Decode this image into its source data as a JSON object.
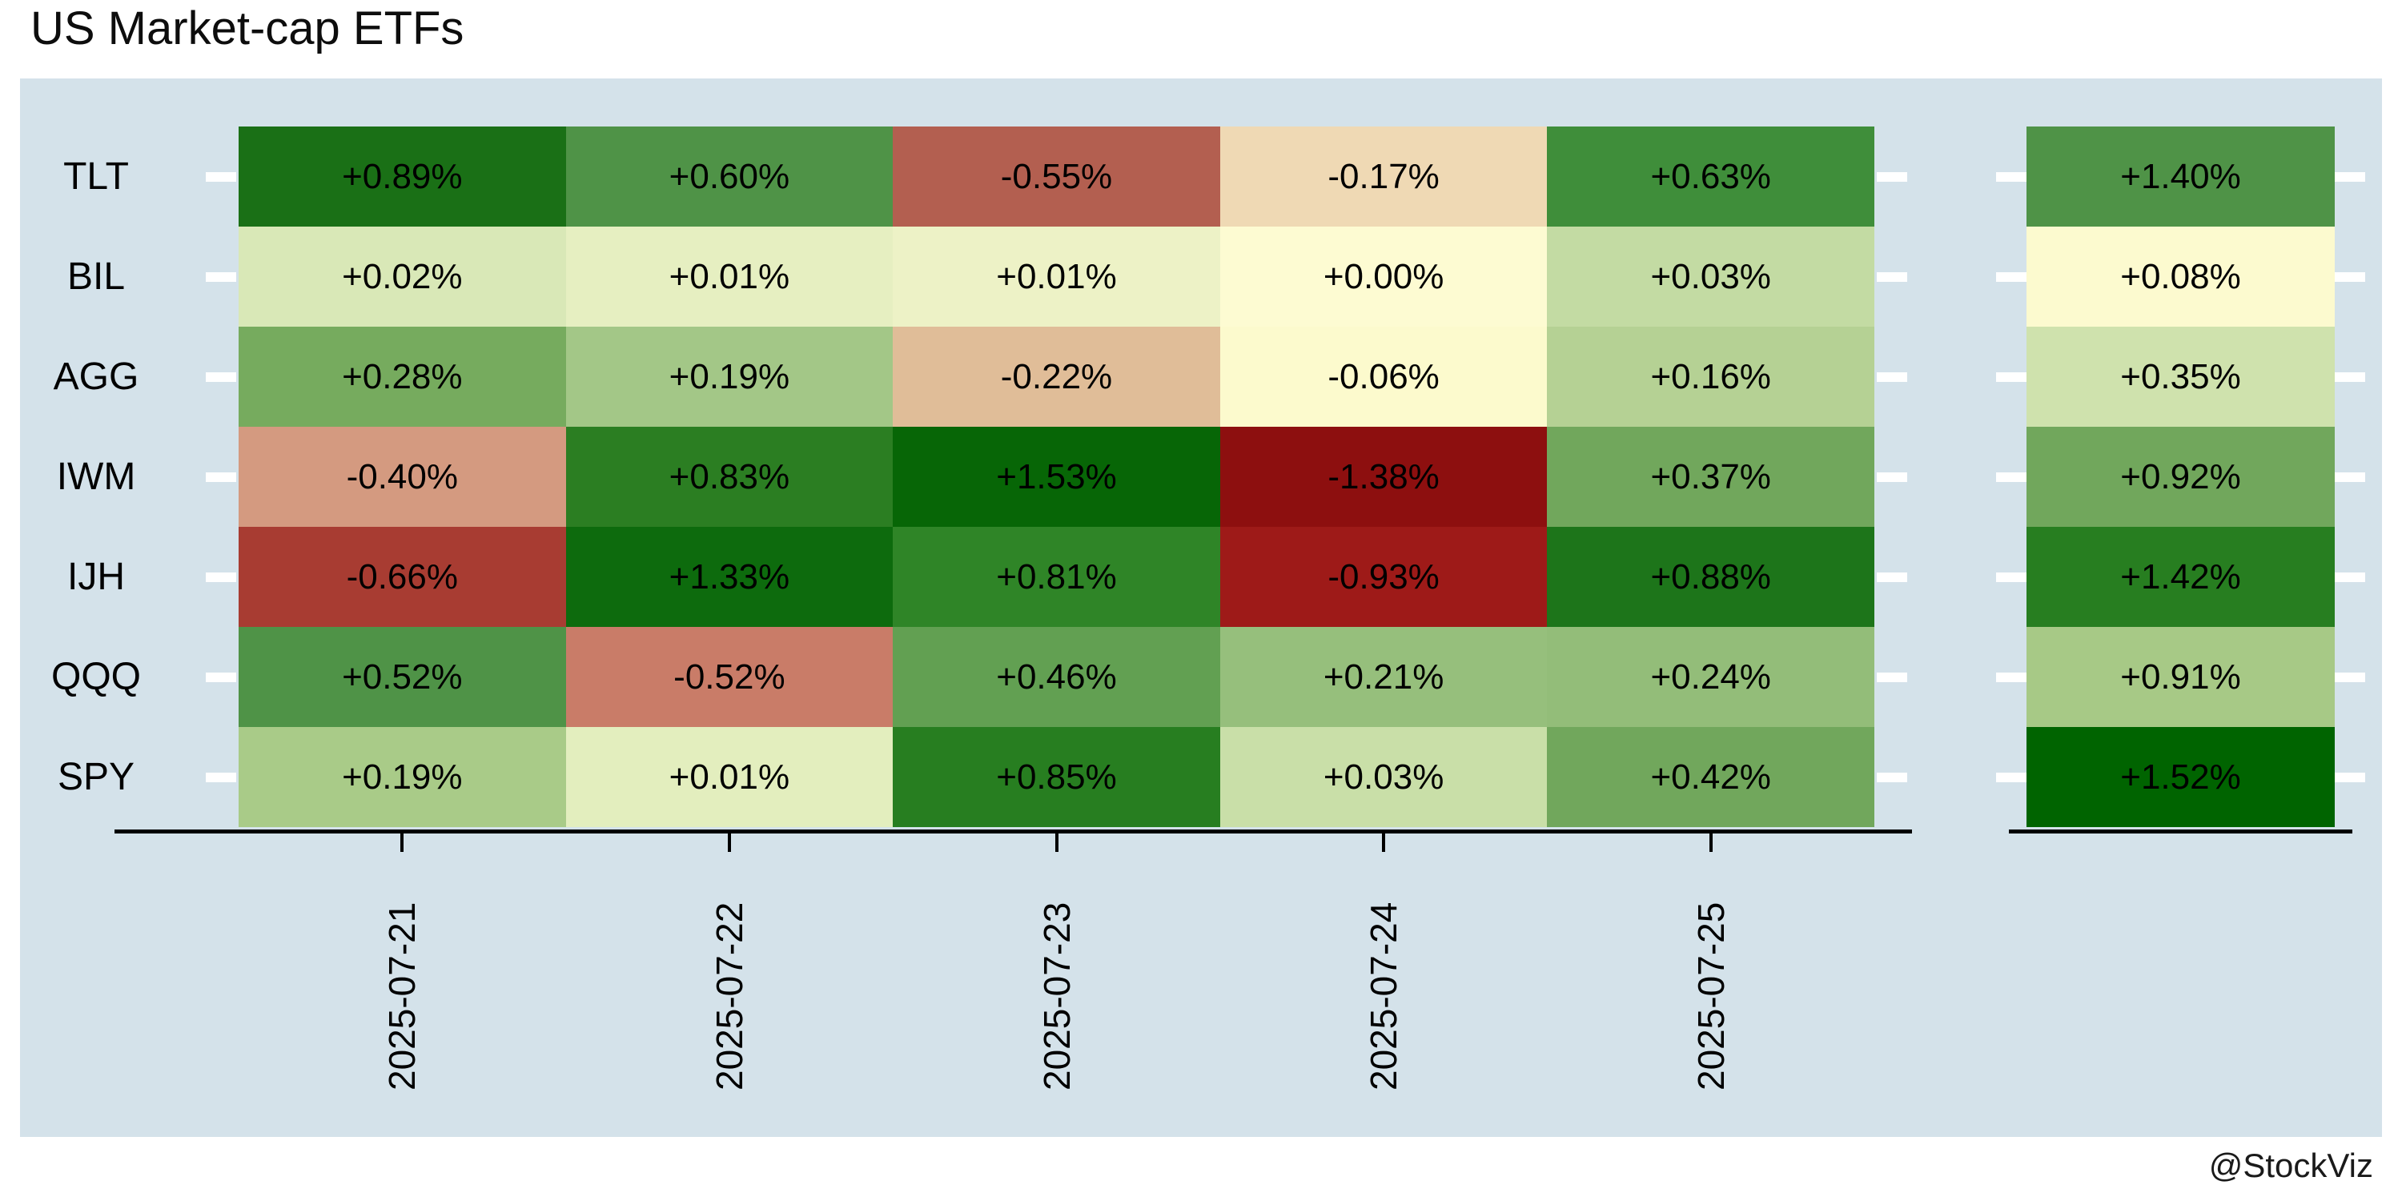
{
  "title": "US Market-cap ETFs",
  "attribution": "@StockViz",
  "colors": {
    "page_background": "#ffffff",
    "plot_background": "#d4e2ea",
    "axis_line": "#000000",
    "y_tick": "#ffffff",
    "cell_text": "#000000"
  },
  "chart_data": {
    "type": "heatmap",
    "title": "US Market-cap ETFs",
    "colormap": "red-yellow-green (negative=red, ~0=pale yellow, positive=green)",
    "x_categories": [
      "2025-07-21",
      "2025-07-22",
      "2025-07-23",
      "2025-07-24",
      "2025-07-25"
    ],
    "y_categories": [
      "TLT",
      "BIL",
      "AGG",
      "IWM",
      "IJH",
      "QQQ",
      "SPY"
    ],
    "values": [
      [
        0.89,
        0.6,
        -0.55,
        -0.17,
        0.63
      ],
      [
        0.02,
        0.01,
        0.01,
        0.0,
        0.03
      ],
      [
        0.28,
        0.19,
        -0.22,
        -0.06,
        0.16
      ],
      [
        -0.4,
        0.83,
        1.53,
        -1.38,
        0.37
      ],
      [
        -0.66,
        1.33,
        0.81,
        -0.93,
        0.88
      ],
      [
        0.52,
        -0.52,
        0.46,
        0.21,
        0.24
      ],
      [
        0.19,
        0.01,
        0.85,
        0.03,
        0.42
      ]
    ],
    "totals": [
      1.4,
      0.08,
      0.35,
      0.92,
      1.42,
      0.91,
      1.52
    ],
    "cell_labels": [
      [
        "+0.89%",
        "+0.60%",
        "-0.55%",
        "-0.17%",
        "+0.63%"
      ],
      [
        "+0.02%",
        "+0.01%",
        "+0.01%",
        "+0.00%",
        "+0.03%"
      ],
      [
        "+0.28%",
        "+0.19%",
        "-0.22%",
        "-0.06%",
        "+0.16%"
      ],
      [
        "-0.40%",
        "+0.83%",
        "+1.53%",
        "-1.38%",
        "+0.37%"
      ],
      [
        "-0.66%",
        "+1.33%",
        "+0.81%",
        "-0.93%",
        "+0.88%"
      ],
      [
        "+0.52%",
        "-0.52%",
        "+0.46%",
        "+0.21%",
        "+0.24%"
      ],
      [
        "+0.19%",
        "+0.01%",
        "+0.85%",
        "+0.03%",
        "+0.42%"
      ]
    ],
    "total_labels": [
      "+1.40%",
      "+0.08%",
      "+0.35%",
      "+0.92%",
      "+1.42%",
      "+0.91%",
      "+1.52%"
    ],
    "cell_colors": [
      [
        "#1a7016",
        "#4f9347",
        "#b35f50",
        "#efd9b4",
        "#3f8e3a"
      ],
      [
        "#d9e8b7",
        "#e6efc1",
        "#edf2c6",
        "#fdfbd2",
        "#c3dba3"
      ],
      [
        "#76ab5e",
        "#a3c787",
        "#e0bd98",
        "#fcfacd",
        "#b5d194"
      ],
      [
        "#d49a80",
        "#2b7e22",
        "#076606",
        "#8d0f0f",
        "#71a75c"
      ],
      [
        "#a83c32",
        "#0d6b0d",
        "#2f8527",
        "#9e1a18",
        "#1d751a"
      ],
      [
        "#4f9347",
        "#c97c68",
        "#62a052",
        "#96bf7c",
        "#93bd79"
      ],
      [
        "#a9cb88",
        "#e3eebe",
        "#277e20",
        "#c9dfa8",
        "#71a75c"
      ]
    ],
    "total_colors": [
      "#4f9347",
      "#fcfacf",
      "#cfe2ad",
      "#71a75c",
      "#277e20",
      "#a7c986",
      "#006400"
    ]
  }
}
